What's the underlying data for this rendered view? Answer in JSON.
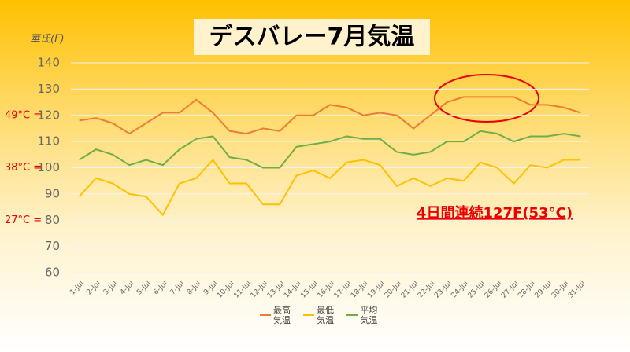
{
  "chart_data": {
    "type": "line",
    "title": "デスバレー7月気温",
    "y_axis_label": "華氏(F)",
    "categories": [
      "1-Jul",
      "2-Jul",
      "3-Jul",
      "4-Jul",
      "5-Jul",
      "6-Jul",
      "7-Jul",
      "8-Jul",
      "9-Jul",
      "10-Jul",
      "11-Jul",
      "12-Jul",
      "13-Jul",
      "14-Jul",
      "15-Jul",
      "16-Jul",
      "17-Jul",
      "18-Jul",
      "19-Jul",
      "20-Jul",
      "21-Jul",
      "22-Jul",
      "23-Jul",
      "24-Jul",
      "25-Jul",
      "26-Jul",
      "27-Jul",
      "28-Jul",
      "29-Jul",
      "30-Jul",
      "31-Jul"
    ],
    "series": [
      {
        "name": "最高気温",
        "color": "#ed7d31",
        "values": [
          118,
          119,
          117,
          113,
          117,
          121,
          121,
          126,
          121,
          114,
          113,
          115,
          114,
          120,
          120,
          124,
          123,
          120,
          121,
          120,
          115,
          120,
          125,
          127,
          127,
          127,
          127,
          124,
          124,
          123,
          121
        ]
      },
      {
        "name": "最低気温",
        "color": "#ffc000",
        "values": [
          89,
          96,
          94,
          90,
          89,
          82,
          94,
          96,
          103,
          94,
          94,
          86,
          86,
          97,
          99,
          96,
          102,
          103,
          101,
          93,
          96,
          93,
          96,
          95,
          102,
          100,
          94,
          101,
          100,
          103,
          103
        ]
      },
      {
        "name": "平均気温",
        "color": "#70ad47",
        "values": [
          103,
          107,
          105,
          101,
          103,
          101,
          107,
          111,
          112,
          104,
          103,
          100,
          100,
          108,
          109,
          110,
          112,
          111,
          111,
          106,
          105,
          106,
          110,
          110,
          114,
          113,
          110,
          112,
          112,
          113,
          112
        ]
      }
    ],
    "ylim": [
      60,
      140
    ],
    "yticks": [
      60,
      70,
      80,
      90,
      100,
      110,
      120,
      130,
      140
    ],
    "grid": true,
    "side_labels": [
      {
        "label": "49°C =",
        "value": 120
      },
      {
        "label": "38°C =",
        "value": 100
      },
      {
        "label": "27°C =",
        "value": 80
      }
    ],
    "annotation": "4日間連続127F(53°C)"
  }
}
